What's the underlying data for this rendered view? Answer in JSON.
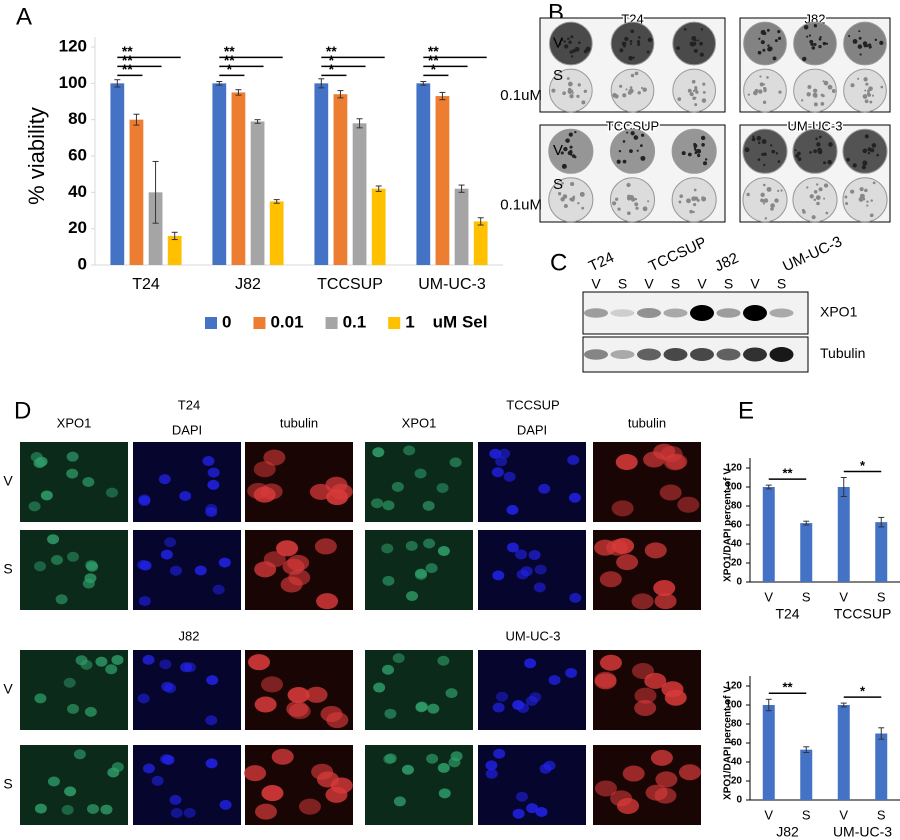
{
  "chart_data": [
    {
      "type": "bar",
      "ylabel": "% viability",
      "categories": [
        "T24",
        "J82",
        "TCCSUP",
        "UM-UC-3"
      ],
      "series": [
        {
          "name": "0",
          "color": "#4472c4",
          "values": [
            100,
            100,
            100,
            100
          ],
          "errors": [
            2,
            1,
            2.5,
            1
          ]
        },
        {
          "name": "0.01",
          "color": "#ed7d31",
          "values": [
            80,
            95,
            94,
            93
          ],
          "errors": [
            3,
            1.5,
            2,
            2
          ]
        },
        {
          "name": "0.1",
          "color": "#a5a5a5",
          "values": [
            40,
            79,
            78,
            42
          ],
          "errors": [
            17,
            1,
            2.5,
            2
          ]
        },
        {
          "name": "1",
          "color": "#ffc000",
          "values": [
            16,
            35,
            42,
            24
          ],
          "errors": [
            2,
            1,
            1.5,
            2
          ]
        }
      ],
      "legend_title": "uM Sel",
      "significance": [
        [
          "**",
          "**",
          "**"
        ],
        [
          "*",
          "**",
          "**"
        ],
        [
          "*",
          "*",
          "**"
        ],
        [
          "*",
          "**",
          "**"
        ]
      ],
      "ylim": [
        0,
        120
      ],
      "yticks": [
        0,
        20,
        40,
        60,
        80,
        100,
        120
      ],
      "grid": false
    },
    {
      "type": "bar",
      "ylabel": "XPO1/DAPI percent of V",
      "categories": [
        "V",
        "S",
        "V",
        "S"
      ],
      "groups": [
        "T24",
        "TCCSUP"
      ],
      "values": [
        100,
        62,
        100,
        63
      ],
      "errors": [
        2,
        2,
        10,
        5
      ],
      "color": "#4472c4",
      "significance": [
        "**",
        "*"
      ],
      "ylim": [
        0,
        120
      ],
      "yticks": [
        0,
        20,
        40,
        60,
        80,
        100,
        120
      ],
      "grid": false
    },
    {
      "type": "bar",
      "ylabel": "XPO1/DAPI percent of V",
      "categories": [
        "V",
        "S",
        "V",
        "S"
      ],
      "groups": [
        "J82",
        "UM-UC-3"
      ],
      "values": [
        100,
        53,
        100,
        70
      ],
      "errors": [
        6,
        3,
        2,
        6
      ],
      "color": "#4472c4",
      "significance": [
        "**",
        "*"
      ],
      "ylim": [
        0,
        120
      ],
      "yticks": [
        0,
        20,
        40,
        60,
        80,
        100,
        120
      ],
      "grid": false
    }
  ],
  "panel_labels": [
    "A",
    "B",
    "C",
    "D",
    "E"
  ],
  "panel_b": {
    "cell_lines": [
      "T24",
      "J82",
      "TCCSUP",
      "UM-UC-3"
    ],
    "row_labels": [
      "V",
      "S",
      "0.1uM"
    ]
  },
  "panel_c": {
    "cell_lines": [
      "T24",
      "TCCSUP",
      "J82",
      "UM-UC-3"
    ],
    "lanes": [
      "V",
      "S",
      "V",
      "S",
      "V",
      "S",
      "V",
      "S"
    ],
    "proteins": [
      "XPO1",
      "Tubulin"
    ]
  },
  "panel_d": {
    "column_labels": [
      "XPO1",
      "DAPI",
      "tubulin",
      "XPO1",
      "DAPI",
      "tubulin"
    ],
    "cell_lines": [
      "T24",
      "TCCSUP",
      "J82",
      "UM-UC-3"
    ],
    "row_labels": [
      "V",
      "S",
      "V",
      "S"
    ]
  }
}
